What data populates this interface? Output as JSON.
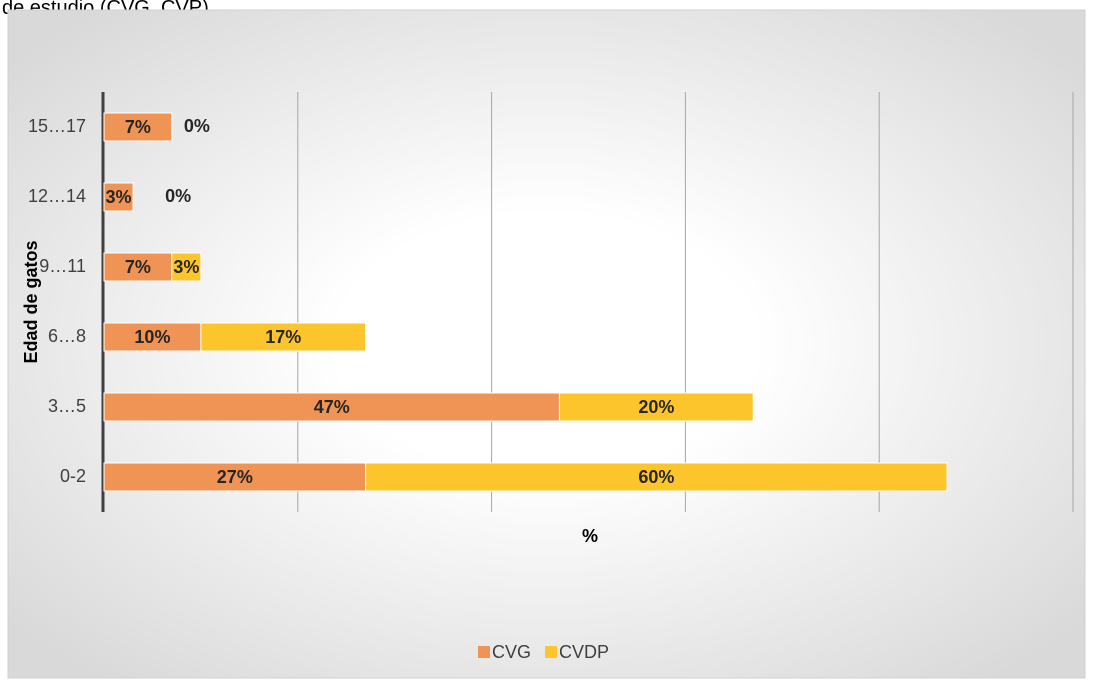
{
  "chart_data": {
    "type": "stacked-barh",
    "title": "de estudio (CVG, CVP)",
    "x_label": "%",
    "y_label": "Edad de gatos",
    "categories": [
      "0-2",
      "3…5",
      "6…8",
      "9…11",
      "12…14",
      "15…17"
    ],
    "series": [
      {
        "name": "CVG",
        "color": "#ef9454",
        "values": [
          27,
          47,
          10,
          7,
          3,
          7
        ],
        "value_labels": [
          "27%",
          "47%",
          "10%",
          "7%",
          "3%",
          "7%"
        ]
      },
      {
        "name": "CVDP",
        "color": "#fcc52c",
        "values": [
          60,
          20,
          17,
          3,
          0,
          0
        ],
        "value_labels": [
          "60%",
          "20%",
          "17%",
          "3%",
          "0%",
          "0%"
        ]
      }
    ],
    "xlim": [
      0,
      100
    ],
    "xticks": [
      0,
      20,
      40,
      60,
      80,
      100
    ],
    "grid": true,
    "legend": "bottom"
  }
}
